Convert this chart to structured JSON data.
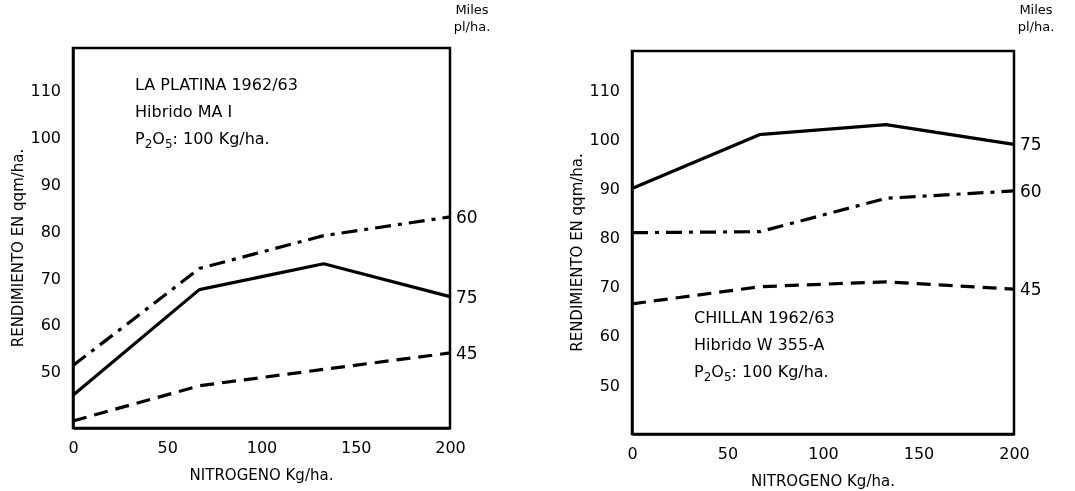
{
  "chart_data": [
    {
      "type": "line",
      "xlabel": "NITROGENO Kg/ha.",
      "ylabel": "RENDIMIENTO EN qqm/ha.",
      "legend_title": "Miles pl/ha.",
      "annotations": [
        "LA PLATINA 1962/63",
        "Hibrido MA I",
        "P$_{2}$O$_{5}$: 100 Kg/ha."
      ],
      "x": [
        0,
        67,
        133,
        200
      ],
      "xlim": [
        0,
        200
      ],
      "xticks": [
        0,
        50,
        100,
        150,
        200
      ],
      "ylim": [
        38,
        119
      ],
      "yticks": [
        50,
        60,
        70,
        80,
        90,
        100,
        110
      ],
      "series": [
        {
          "name": "60",
          "color": "#000000",
          "line_style": "dashdot",
          "values": [
            51.3,
            72,
            79,
            83
          ]
        },
        {
          "name": "75",
          "color": "#000000",
          "line_style": "solid",
          "values": [
            45,
            67.5,
            73,
            66
          ]
        },
        {
          "name": "45",
          "color": "#000000",
          "line_style": "dashed",
          "values": [
            39.5,
            47,
            50.5,
            54
          ]
        }
      ]
    },
    {
      "type": "line",
      "xlabel": "NITROGENO Kg/ha.",
      "ylabel": "RENDIMIENTO EN qqm/ha.",
      "legend_title": "Miles pl/ha.",
      "annotations": [
        "CHILLAN 1962/63",
        "Hibrido W 355-A",
        "P$_{2}$O$_{5}$: 100 Kg/ha."
      ],
      "x": [
        0,
        67,
        133,
        200
      ],
      "xlim": [
        0,
        200
      ],
      "xticks": [
        0,
        50,
        100,
        150,
        200
      ],
      "ylim": [
        40,
        118
      ],
      "yticks": [
        50,
        60,
        70,
        80,
        90,
        100,
        110
      ],
      "series": [
        {
          "name": "75",
          "color": "#000000",
          "line_style": "solid",
          "values": [
            90,
            101,
            103,
            99
          ]
        },
        {
          "name": "60",
          "color": "#000000",
          "line_style": "dashdot",
          "values": [
            81,
            81.2,
            88,
            89.5
          ]
        },
        {
          "name": "45",
          "color": "#000000",
          "line_style": "dashed",
          "values": [
            66.5,
            70,
            71,
            69.5
          ]
        }
      ]
    }
  ]
}
